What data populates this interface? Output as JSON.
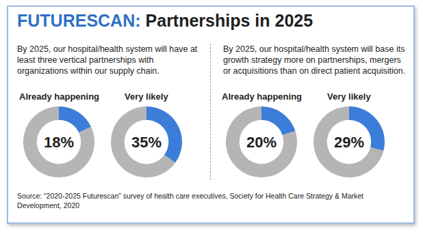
{
  "title": [
    "FUTURESCAN:",
    "Partnerships in 2025"
  ],
  "statements": [
    "By 2025, our hospital/health system will have at least three vertical partnerships with organizations within our supply chain.",
    "By 2025, our hospital/health system will base its growth strategy more on partnerships, mergers or acquisitions than on direct patient acquisition."
  ],
  "source": "Source: “2020-2025 Futurescan” survey of health care executives, Society for Health Care Strategy & Market Development, 2020",
  "chart_data": [
    {
      "type": "pie",
      "title": "Already happening",
      "values": [
        18,
        82
      ],
      "value_labels": [
        "18%",
        null
      ],
      "colors": [
        "#3b7dd8",
        "#b5b5b5"
      ]
    },
    {
      "type": "pie",
      "title": "Very likely",
      "values": [
        35,
        65
      ],
      "value_labels": [
        "35%",
        null
      ],
      "colors": [
        "#3b7dd8",
        "#b5b5b5"
      ]
    },
    {
      "type": "pie",
      "title": "Already happening",
      "values": [
        20,
        80
      ],
      "value_labels": [
        "20%",
        null
      ],
      "colors": [
        "#3b7dd8",
        "#b5b5b5"
      ]
    },
    {
      "type": "pie",
      "title": "Very likely",
      "values": [
        29,
        71
      ],
      "value_labels": [
        "29%",
        null
      ],
      "colors": [
        "#3b7dd8",
        "#b5b5b5"
      ]
    }
  ]
}
